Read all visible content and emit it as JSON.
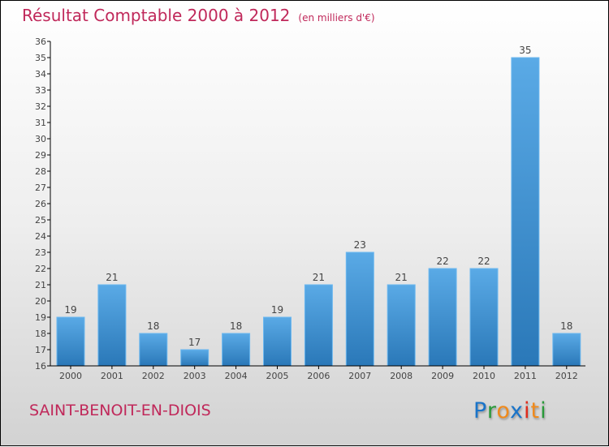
{
  "chart_data": {
    "type": "bar",
    "title": "Résultat Comptable 2000 à 2012",
    "subtitle": "(en milliers d'€)",
    "categories": [
      "2000",
      "2001",
      "2002",
      "2003",
      "2004",
      "2005",
      "2006",
      "2007",
      "2008",
      "2009",
      "2010",
      "2011",
      "2012"
    ],
    "values": [
      19,
      21,
      18,
      17,
      18,
      19,
      21,
      23,
      21,
      22,
      22,
      35,
      18
    ],
    "ylim": [
      16,
      36
    ],
    "yticks": [
      16,
      17,
      18,
      19,
      20,
      21,
      22,
      23,
      24,
      25,
      26,
      27,
      28,
      29,
      30,
      31,
      32,
      33,
      34,
      35,
      36
    ],
    "xlabel": "",
    "ylabel": "",
    "grid": false,
    "bar_color": "#3b94d6"
  },
  "town": "SAINT-BENOIT-EN-DIOIS",
  "logo": {
    "text": "Proxiti",
    "letters": [
      [
        "P",
        "#1a74c9"
      ],
      [
        "r",
        "#2a9a3a"
      ],
      [
        "o",
        "#f08a1c"
      ],
      [
        "x",
        "#1a74c9"
      ],
      [
        "i",
        "#e02a1a"
      ],
      [
        "t",
        "#f08a1c"
      ],
      [
        "i",
        "#2a9a3a"
      ]
    ]
  }
}
